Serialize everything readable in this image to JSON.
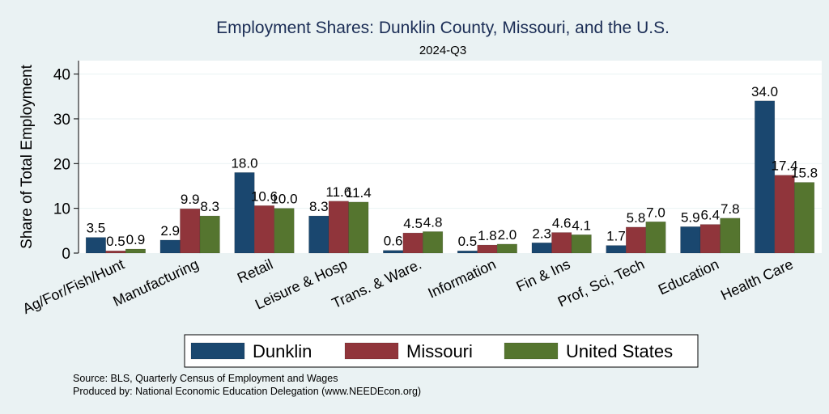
{
  "chart_data": {
    "type": "bar",
    "title": "Employment Shares: Dunklin County, Missouri, and the U.S.",
    "subtitle": "2024-Q3",
    "ylabel": "Share of Total Employment",
    "xlabel": "",
    "ylim": [
      0,
      43
    ],
    "yticks": [
      0,
      10,
      20,
      30,
      40
    ],
    "grid": true,
    "legend_position": "bottom",
    "categories": [
      "Ag/For/Fish/Hunt",
      "Manufacturing",
      "Retail",
      "Leisure & Hosp",
      "Trans. & Ware.",
      "Information",
      "Fin & Ins",
      "Prof, Sci, Tech",
      "Education",
      "Health Care"
    ],
    "series": [
      {
        "name": "Dunklin",
        "color": "#1a476f",
        "values": [
          3.5,
          2.9,
          18.0,
          8.3,
          0.6,
          0.5,
          2.3,
          1.7,
          5.9,
          34.0
        ]
      },
      {
        "name": "Missouri",
        "color": "#90353b",
        "values": [
          0.5,
          9.9,
          10.6,
          11.6,
          4.5,
          1.8,
          4.6,
          5.8,
          6.4,
          17.4
        ]
      },
      {
        "name": "United States",
        "color": "#55752f",
        "values": [
          0.9,
          8.3,
          10.0,
          11.4,
          4.8,
          2.0,
          4.1,
          7.0,
          7.8,
          15.8
        ]
      }
    ]
  },
  "notes": {
    "source": "Source: BLS, Quarterly Census of Employment and Wages",
    "produced": "Produced by: National Economic Education Delegation (www.NEEDEcon.org)"
  }
}
